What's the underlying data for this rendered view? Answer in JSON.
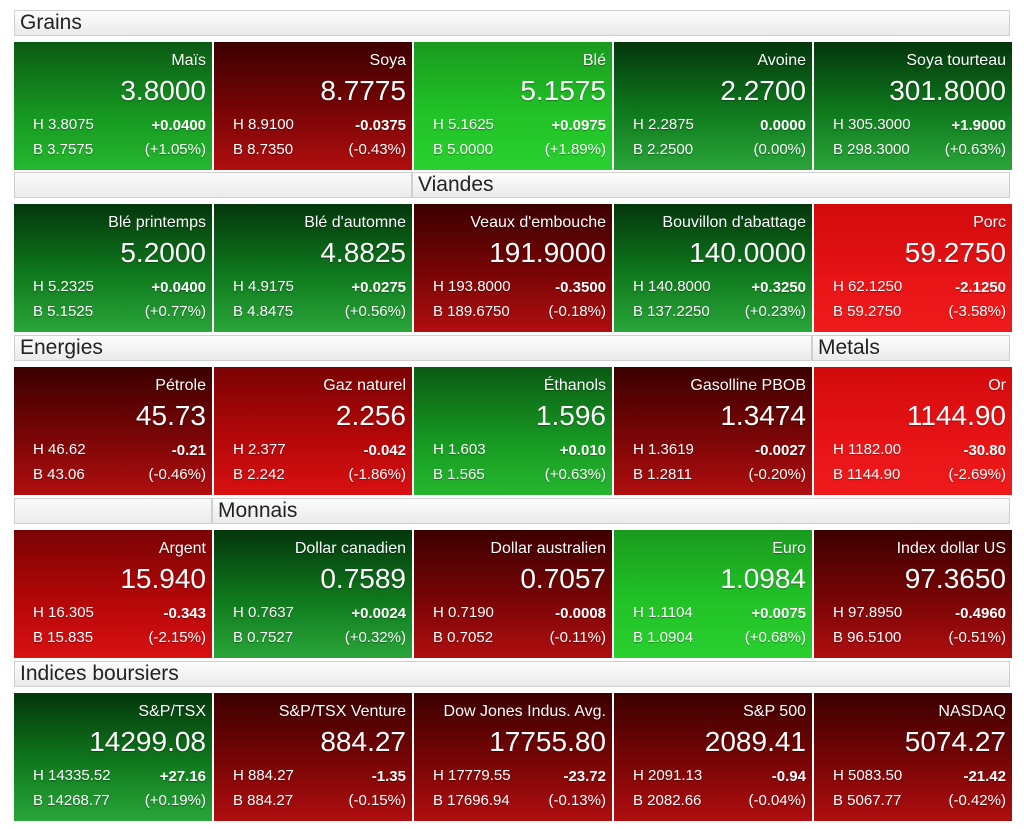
{
  "sections": {
    "grains": "Grains",
    "viandes": "Viandes",
    "energies": "Energies",
    "metals": "Metals",
    "monnais": "Monnais",
    "indices": "Indices boursiers"
  },
  "colors": {
    "green_dark": "#0f7a1d",
    "green_bright": "#21c227",
    "red_dark": "#7a0506",
    "red_bright": "#e81416"
  },
  "tiles": [
    {
      "name": "Maïs",
      "price": "3.8000",
      "high": "H 3.8075",
      "low": "B 3.7575",
      "change": "+0.0400",
      "pct": "(+1.05%)",
      "trend": "up"
    },
    {
      "name": "Soya",
      "price": "8.7775",
      "high": "H 8.9100",
      "low": "B 8.7350",
      "change": "-0.0375",
      "pct": "(-0.43%)",
      "trend": "down"
    },
    {
      "name": "Blé",
      "price": "5.1575",
      "high": "H 5.1625",
      "low": "B 5.0000",
      "change": "+0.0975",
      "pct": "(+1.89%)",
      "trend": "up"
    },
    {
      "name": "Avoine",
      "price": "2.2700",
      "high": "H 2.2875",
      "low": "B 2.2500",
      "change": "0.0000",
      "pct": "(0.00%)",
      "trend": "flat"
    },
    {
      "name": "Soya tourteau",
      "price": "301.8000",
      "high": "H 305.3000",
      "low": "B 298.3000",
      "change": "+1.9000",
      "pct": "(+0.63%)",
      "trend": "up"
    },
    {
      "name": "Blé printemps",
      "price": "5.2000",
      "high": "H 5.2325",
      "low": "B 5.1525",
      "change": "+0.0400",
      "pct": "(+0.77%)",
      "trend": "up"
    },
    {
      "name": "Blé d'automne",
      "price": "4.8825",
      "high": "H 4.9175",
      "low": "B 4.8475",
      "change": "+0.0275",
      "pct": "(+0.56%)",
      "trend": "up"
    },
    {
      "name": "Veaux d'embouche",
      "price": "191.9000",
      "high": "H 193.8000",
      "low": "B 189.6750",
      "change": "-0.3500",
      "pct": "(-0.18%)",
      "trend": "down"
    },
    {
      "name": "Bouvillon d'abattage",
      "price": "140.0000",
      "high": "H 140.8000",
      "low": "B 137.2250",
      "change": "+0.3250",
      "pct": "(+0.23%)",
      "trend": "up"
    },
    {
      "name": "Porc",
      "price": "59.2750",
      "high": "H 62.1250",
      "low": "B 59.2750",
      "change": "-2.1250",
      "pct": "(-3.58%)",
      "trend": "down"
    },
    {
      "name": "Pétrole",
      "price": "45.73",
      "high": "H 46.62",
      "low": "B 43.06",
      "change": "-0.21",
      "pct": "(-0.46%)",
      "trend": "down"
    },
    {
      "name": "Gaz naturel",
      "price": "2.256",
      "high": "H 2.377",
      "low": "B 2.242",
      "change": "-0.042",
      "pct": "(-1.86%)",
      "trend": "down"
    },
    {
      "name": "Éthanols",
      "price": "1.596",
      "high": "H 1.603",
      "low": "B 1.565",
      "change": "+0.010",
      "pct": "(+0.63%)",
      "trend": "up"
    },
    {
      "name": "Gasolline PBOB",
      "price": "1.3474",
      "high": "H 1.3619",
      "low": "B 1.2811",
      "change": "-0.0027",
      "pct": "(-0.20%)",
      "trend": "down"
    },
    {
      "name": "Or",
      "price": "1144.90",
      "high": "H 1182.00",
      "low": "B 1144.90",
      "change": "-30.80",
      "pct": "(-2.69%)",
      "trend": "down"
    },
    {
      "name": "Argent",
      "price": "15.940",
      "high": "H 16.305",
      "low": "B 15.835",
      "change": "-0.343",
      "pct": "(-2.15%)",
      "trend": "down"
    },
    {
      "name": "Dollar canadien",
      "price": "0.7589",
      "high": "H 0.7637",
      "low": "B 0.7527",
      "change": "+0.0024",
      "pct": "(+0.32%)",
      "trend": "up"
    },
    {
      "name": "Dollar australien",
      "price": "0.7057",
      "high": "H 0.7190",
      "low": "B 0.7052",
      "change": "-0.0008",
      "pct": "(-0.11%)",
      "trend": "down"
    },
    {
      "name": "Euro",
      "price": "1.0984",
      "high": "H 1.1104",
      "low": "B 1.0904",
      "change": "+0.0075",
      "pct": "(+0.68%)",
      "trend": "up"
    },
    {
      "name": "Index dollar US",
      "price": "97.3650",
      "high": "H 97.8950",
      "low": "B 96.5100",
      "change": "-0.4960",
      "pct": "(-0.51%)",
      "trend": "down"
    },
    {
      "name": "S&P/TSX",
      "price": "14299.08",
      "high": "H 14335.52",
      "low": "B 14268.77",
      "change": "+27.16",
      "pct": "(+0.19%)",
      "trend": "up"
    },
    {
      "name": "S&P/TSX Venture",
      "price": "884.27",
      "high": "H 884.27",
      "low": "B 884.27",
      "change": "-1.35",
      "pct": "(-0.15%)",
      "trend": "down"
    },
    {
      "name": "Dow Jones Indus. Avg.",
      "price": "17755.80",
      "high": "H 17779.55",
      "low": "B 17696.94",
      "change": "-23.72",
      "pct": "(-0.13%)",
      "trend": "down"
    },
    {
      "name": "S&P 500",
      "price": "2089.41",
      "high": "H 2091.13",
      "low": "B 2082.66",
      "change": "-0.94",
      "pct": "(-0.04%)",
      "trend": "down"
    },
    {
      "name": "NASDAQ",
      "price": "5074.27",
      "high": "H 5083.50",
      "low": "B 5067.77",
      "change": "-21.42",
      "pct": "(-0.42%)",
      "trend": "down"
    }
  ]
}
